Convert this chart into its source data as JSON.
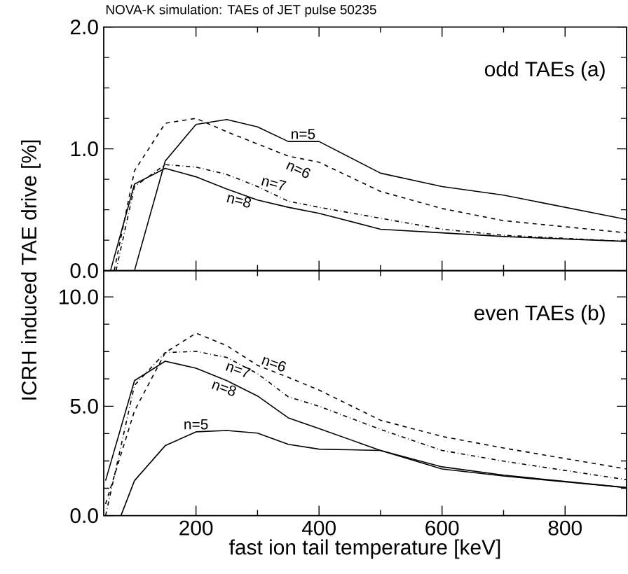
{
  "chart_data": [
    {
      "type": "line",
      "title": "NOVA-K simulation: TAEs of JET pulse 50235",
      "ylabel": "ICRH induced TAE drive [%]",
      "xlim": [
        50,
        900
      ],
      "ylim": [
        0,
        2
      ],
      "xticks": [
        {
          "value": 200,
          "label": null
        },
        {
          "value": 400,
          "label": null
        },
        {
          "value": 600,
          "label": null
        },
        {
          "value": 800,
          "label": null
        }
      ],
      "yticks": [
        {
          "value": 0,
          "label": "0.0"
        },
        {
          "value": 1,
          "label": "1.0"
        },
        {
          "value": 2,
          "label": "2.0"
        }
      ],
      "tick_labels": "y",
      "series": [
        {
          "color": "#000000",
          "line_style": "solid",
          "x": [
            100,
            150,
            200,
            250,
            300,
            350,
            400,
            500,
            600,
            700,
            900
          ],
          "values": [
            0,
            0.9,
            1.2,
            1.24,
            1.18,
            1.06,
            1.06,
            0.8,
            0.69,
            0.62,
            0.42
          ]
        },
        {
          "color": "#000000",
          "line_style": "dashed",
          "x": [
            67,
            100,
            150,
            200,
            250,
            300,
            350,
            400,
            500,
            600,
            700,
            900
          ],
          "values": [
            0,
            0.82,
            1.21,
            1.25,
            1.14,
            1.04,
            0.94,
            0.89,
            0.65,
            0.51,
            0.41,
            0.31
          ]
        },
        {
          "color": "#000000",
          "line_style": "dashdot",
          "x": [
            70,
            100,
            150,
            200,
            250,
            300,
            350,
            400,
            500,
            600,
            700,
            900
          ],
          "values": [
            0,
            0.69,
            0.87,
            0.85,
            0.79,
            0.69,
            0.57,
            0.52,
            0.43,
            0.34,
            0.29,
            0.24
          ]
        },
        {
          "color": "#000000",
          "line_style": "solid",
          "x": [
            61,
            100,
            150,
            200,
            250,
            300,
            350,
            400,
            500,
            600,
            700,
            900
          ],
          "values": [
            0,
            0.71,
            0.84,
            0.77,
            0.67,
            0.58,
            0.52,
            0.47,
            0.34,
            0.31,
            0.28,
            0.24
          ]
        }
      ],
      "annotations": [
        "odd TAEs (a)",
        {
          "text": "n=5",
          "x": 350,
          "y": 1.06
        },
        {
          "text": "n=6",
          "x": 350,
          "y": 0.94
        },
        {
          "text": "n=7",
          "x": 300,
          "y": 0.69
        },
        {
          "text": "n=8",
          "x": 250,
          "y": 0.67
        }
      ]
    },
    {
      "type": "line",
      "xlabel": "fast ion tail temperature [keV]",
      "xlim": [
        50,
        900
      ],
      "ylim": [
        0,
        11.2
      ],
      "xticks": [
        200,
        400,
        600,
        800
      ],
      "yticks": [
        {
          "value": 0,
          "label": "0.0"
        },
        {
          "value": 5,
          "label": "5.0"
        },
        {
          "value": 10,
          "label": "10.0"
        }
      ],
      "series": [
        {
          "color": "#000000",
          "line_style": "solid",
          "x": [
            78,
            100,
            150,
            200,
            250,
            300,
            350,
            400,
            500,
            600,
            700,
            900
          ],
          "values": [
            0,
            1.6,
            3.2,
            3.83,
            3.89,
            3.77,
            3.26,
            3.04,
            2.98,
            2.13,
            1.81,
            1.28
          ]
        },
        {
          "color": "#000000",
          "line_style": "dashed",
          "x": [
            53,
            100,
            150,
            200,
            250,
            300,
            350,
            400,
            500,
            600,
            700,
            900
          ],
          "values": [
            0.53,
            4.79,
            7.45,
            8.34,
            7.77,
            6.87,
            6.32,
            5.74,
            4.36,
            3.62,
            3.09,
            2.13
          ]
        },
        {
          "color": "#000000",
          "line_style": "dashdot",
          "x": [
            53,
            100,
            150,
            200,
            250,
            300,
            350,
            400,
            500,
            600,
            700,
            900
          ],
          "values": [
            0,
            5.96,
            7.45,
            7.51,
            7.23,
            6.49,
            5.43,
            5.0,
            3.94,
            2.98,
            2.49,
            1.64
          ]
        },
        {
          "color": "#000000",
          "line_style": "solid",
          "x": [
            53,
            100,
            150,
            200,
            250,
            300,
            350,
            400,
            500,
            600,
            700,
            900
          ],
          "values": [
            1.6,
            6.17,
            7.06,
            6.74,
            6.17,
            5.47,
            4.47,
            3.98,
            2.98,
            2.23,
            1.85,
            1.28
          ]
        }
      ],
      "annotations": [
        "even TAEs (b)",
        {
          "text": "n=5",
          "x": 200,
          "y": 3.83
        },
        {
          "text": "n=6",
          "x": 300,
          "y": 6.87
        },
        {
          "text": "n=7",
          "x": 250,
          "y": 7.23
        },
        {
          "text": "n=8",
          "x": 250,
          "y": 6.17
        }
      ]
    }
  ]
}
